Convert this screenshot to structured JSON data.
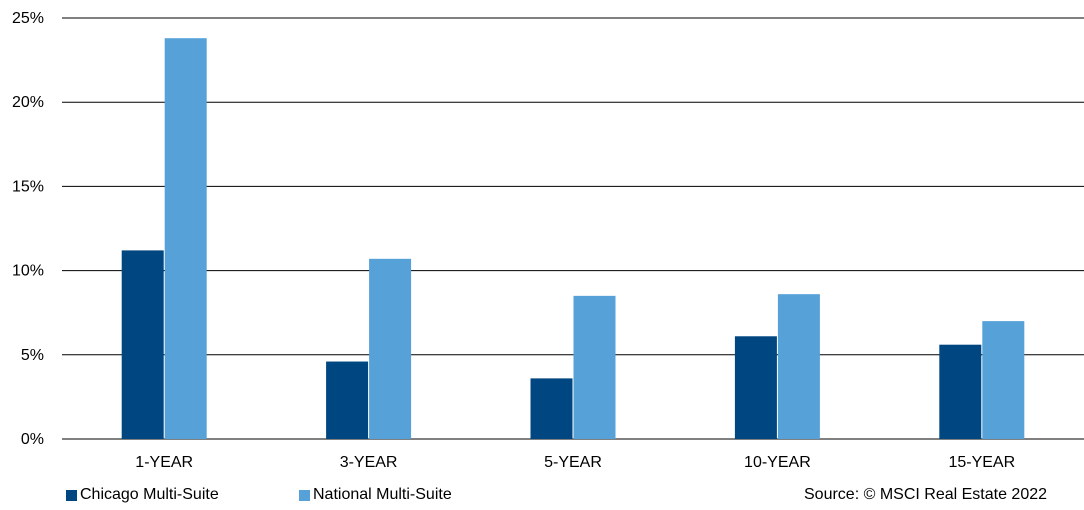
{
  "chart_data": {
    "type": "bar",
    "categories": [
      "1-YEAR",
      "3-YEAR",
      "5-YEAR",
      "10-YEAR",
      "15-YEAR"
    ],
    "series": [
      {
        "name": "Chicago Multi-Suite",
        "values": [
          11.2,
          4.6,
          3.6,
          6.1,
          5.6
        ],
        "color": "#004681"
      },
      {
        "name": "National Multi-Suite",
        "values": [
          23.8,
          10.7,
          8.5,
          8.6,
          7.0
        ],
        "color": "#55a1d8"
      }
    ],
    "ylim": [
      0,
      25
    ],
    "yticks": [
      "0%",
      "5%",
      "10%",
      "15%",
      "20%",
      "25%"
    ],
    "grid": "horizontal",
    "legend_position": "bottom-left",
    "source": "Source: © MSCI Real Estate 2022"
  }
}
